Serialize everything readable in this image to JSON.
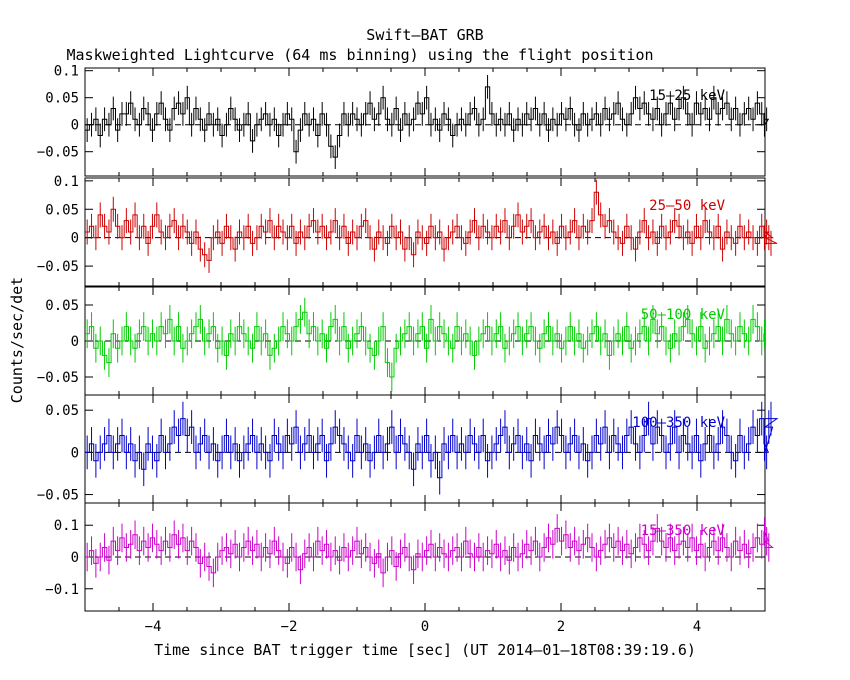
{
  "header": {
    "title": "Swift–BAT GRB",
    "subtitle": "Maskweighted Lightcurve (64 ms binning) using the flight position"
  },
  "axes": {
    "xlabel": "Time since BAT trigger time [sec] (UT 2014‒01‒18T08:39:19.6)",
    "ylabel": "Counts/sec/det",
    "x_ticks": [
      "−4",
      "−2",
      "0",
      "2",
      "4"
    ]
  },
  "chart_data": {
    "type": "line",
    "xlim": [
      -5.0,
      5.0
    ],
    "bin_width_sec": 0.064,
    "x_tick_values": [
      -4,
      -2,
      0,
      2,
      4
    ],
    "x_tick_labels": [
      "−4",
      "−2",
      "0",
      "2",
      "4"
    ],
    "panels": [
      {
        "name": "15–25 keV",
        "label": "15–25 keV",
        "color": "#000000",
        "ylim": [
          -0.095,
          0.105
        ],
        "yticks": [
          0.1,
          0.05,
          0,
          -0.05
        ],
        "ytick_labels": [
          "0.1",
          "0.05",
          "0",
          "−0.05"
        ],
        "error": 0.022,
        "values": [
          -0.01,
          0.0,
          0.01,
          -0.02,
          0.01,
          0.0,
          0.03,
          -0.01,
          0.02,
          0.02,
          0.04,
          0.01,
          0.0,
          0.03,
          0.02,
          -0.01,
          0.02,
          0.04,
          0.01,
          -0.01,
          0.03,
          0.04,
          0.02,
          0.05,
          0.0,
          0.03,
          0.01,
          -0.01,
          0.02,
          0.0,
          0.01,
          -0.02,
          0.0,
          0.03,
          0.01,
          -0.01,
          0.0,
          0.02,
          -0.03,
          0.0,
          0.01,
          0.02,
          0.0,
          0.01,
          -0.02,
          0.0,
          0.02,
          0.01,
          -0.05,
          -0.01,
          0.02,
          0.0,
          0.01,
          -0.02,
          0.02,
          0.0,
          -0.04,
          -0.06,
          -0.02,
          0.02,
          0.0,
          0.02,
          0.01,
          0.0,
          0.02,
          0.04,
          0.01,
          0.02,
          0.05,
          0.01,
          0.0,
          0.03,
          -0.01,
          0.02,
          0.0,
          0.01,
          0.04,
          0.02,
          0.05,
          0.0,
          0.01,
          -0.01,
          0.02,
          0.01,
          -0.02,
          0.0,
          0.01,
          0.0,
          0.02,
          0.03,
          0.0,
          0.01,
          0.07,
          0.02,
          0.0,
          0.01,
          0.0,
          0.02,
          -0.01,
          0.01,
          0.0,
          0.02,
          0.01,
          0.03,
          0.0,
          0.02,
          -0.01,
          0.01,
          0.0,
          0.02,
          0.01,
          0.03,
          0.0,
          -0.01,
          0.02,
          0.0,
          0.01,
          0.02,
          0.0,
          0.03,
          0.01,
          0.02,
          0.04,
          0.01,
          0.0,
          0.02,
          0.05,
          0.03,
          0.04,
          0.02,
          0.01,
          0.03,
          0.0,
          0.02,
          0.04,
          0.01,
          0.03,
          0.05,
          0.02,
          0.0,
          0.04,
          0.02,
          0.03,
          0.01,
          0.05,
          0.02,
          0.03,
          0.04,
          0.01,
          0.03,
          0.0,
          0.02,
          0.03,
          0.01,
          0.04,
          0.02,
          0.0,
          0.01
        ]
      },
      {
        "name": "25–50 keV",
        "label": "25–50 keV",
        "color": "#cc0000",
        "ylim": [
          -0.085,
          0.105
        ],
        "yticks": [
          0.1,
          0.05,
          0,
          -0.05
        ],
        "ytick_labels": [
          "0.1",
          "0.05",
          "0",
          "−0.05"
        ],
        "error": 0.022,
        "values": [
          0.01,
          0.02,
          0.0,
          0.04,
          0.02,
          0.01,
          0.05,
          0.02,
          0.0,
          0.03,
          0.01,
          0.04,
          0.0,
          0.02,
          -0.01,
          0.02,
          0.04,
          0.01,
          0.0,
          0.02,
          0.03,
          0.0,
          0.02,
          0.01,
          -0.01,
          0.01,
          -0.02,
          -0.03,
          -0.04,
          0.0,
          0.01,
          -0.01,
          0.02,
          0.0,
          -0.02,
          0.01,
          0.0,
          0.02,
          -0.01,
          0.0,
          0.02,
          0.01,
          0.03,
          0.0,
          0.02,
          0.01,
          0.0,
          0.02,
          -0.01,
          0.01,
          0.0,
          0.02,
          0.03,
          0.01,
          0.02,
          0.0,
          0.01,
          0.03,
          0.0,
          0.02,
          -0.01,
          0.01,
          0.0,
          0.02,
          0.03,
          0.0,
          -0.02,
          0.01,
          0.0,
          -0.01,
          0.02,
          0.0,
          0.01,
          -0.02,
          0.0,
          -0.03,
          0.01,
          0.0,
          -0.01,
          0.02,
          0.0,
          0.01,
          -0.02,
          0.0,
          0.01,
          0.02,
          0.0,
          -0.01,
          0.01,
          0.03,
          0.0,
          0.02,
          0.01,
          0.0,
          0.02,
          0.01,
          0.03,
          0.0,
          0.02,
          0.04,
          0.01,
          0.02,
          0.03,
          0.0,
          0.01,
          0.02,
          0.0,
          0.01,
          -0.01,
          0.02,
          0.0,
          0.01,
          0.03,
          0.0,
          0.02,
          0.01,
          0.03,
          0.08,
          0.04,
          0.02,
          0.03,
          0.01,
          0.0,
          -0.01,
          0.02,
          0.0,
          -0.02,
          0.01,
          0.03,
          0.0,
          0.01,
          -0.01,
          0.02,
          0.0,
          0.01,
          0.03,
          0.02,
          0.0,
          0.01,
          -0.01,
          0.02,
          0.0,
          0.03,
          0.01,
          0.0,
          0.02,
          -0.02,
          0.01,
          0.0,
          -0.01,
          0.02,
          0.0,
          0.01,
          0.0,
          -0.01,
          0.02,
          0.0,
          0.01,
          0.0,
          -0.01
        ]
      },
      {
        "name": "50–100 keV",
        "label": "50–100 keV",
        "color": "#00cc00",
        "ylim": [
          -0.075,
          0.075
        ],
        "yticks": [
          0.05,
          0,
          -0.05
        ],
        "ytick_labels": [
          "0.05",
          "0",
          "−0.05"
        ],
        "error": 0.02,
        "values": [
          0.01,
          0.02,
          -0.01,
          0.0,
          -0.02,
          -0.03,
          0.01,
          -0.01,
          0.0,
          0.02,
          0.0,
          -0.01,
          0.01,
          0.02,
          0.0,
          0.01,
          0.0,
          0.02,
          0.01,
          0.03,
          0.0,
          0.02,
          -0.01,
          0.0,
          0.01,
          0.02,
          0.03,
          0.0,
          0.01,
          0.02,
          -0.01,
          0.0,
          -0.02,
          0.01,
          0.0,
          0.02,
          0.01,
          0.0,
          -0.01,
          0.02,
          0.0,
          0.01,
          -0.02,
          -0.01,
          0.0,
          0.02,
          0.01,
          0.0,
          0.02,
          0.03,
          0.04,
          0.01,
          0.02,
          0.0,
          0.01,
          -0.01,
          0.02,
          0.03,
          0.0,
          0.02,
          -0.01,
          0.0,
          0.01,
          0.02,
          0.0,
          -0.01,
          -0.02,
          0.0,
          0.02,
          -0.03,
          -0.05,
          -0.01,
          0.0,
          0.01,
          0.02,
          0.0,
          0.01,
          0.02,
          -0.01,
          0.03,
          0.0,
          0.02,
          0.01,
          0.0,
          -0.01,
          0.02,
          0.0,
          0.01,
          0.0,
          -0.02,
          0.0,
          0.01,
          0.02,
          0.0,
          0.01,
          0.02,
          -0.01,
          0.0,
          0.01,
          0.02,
          0.0,
          0.01,
          0.02,
          0.0,
          -0.01,
          0.01,
          0.02,
          0.0,
          0.01,
          -0.01,
          0.0,
          0.02,
          0.0,
          0.01,
          -0.01,
          0.0,
          0.01,
          0.02,
          0.0,
          0.01,
          -0.02,
          0.0,
          0.01,
          0.0,
          0.02,
          -0.01,
          0.0,
          0.01,
          0.02,
          0.0,
          0.03,
          0.01,
          0.02,
          0.0,
          -0.01,
          0.01,
          0.0,
          0.02,
          0.03,
          0.01,
          0.0,
          0.02,
          -0.01,
          0.0,
          0.01,
          0.02,
          0.0,
          0.03,
          0.01,
          0.0,
          0.02,
          0.01,
          0.0,
          0.03,
          0.02,
          0.0,
          0.01
        ]
      },
      {
        "name": "100–350 keV",
        "label": "100–350 keV",
        "color": "#0000cc",
        "ylim": [
          -0.06,
          0.068
        ],
        "yticks": [
          0.05,
          0,
          -0.05
        ],
        "ytick_labels": [
          "0.05",
          "0",
          "−0.05"
        ],
        "error": 0.02,
        "values": [
          0.0,
          0.01,
          -0.01,
          0.0,
          0.01,
          0.02,
          0.0,
          0.01,
          0.02,
          0.0,
          0.01,
          -0.01,
          0.0,
          -0.02,
          0.01,
          0.0,
          -0.01,
          0.02,
          0.0,
          0.01,
          0.03,
          0.02,
          0.04,
          0.02,
          0.03,
          0.0,
          0.01,
          0.02,
          0.0,
          0.01,
          -0.01,
          0.0,
          0.02,
          0.0,
          0.01,
          -0.01,
          0.0,
          0.01,
          0.02,
          0.0,
          0.01,
          0.0,
          -0.01,
          0.02,
          0.01,
          0.0,
          0.02,
          0.01,
          0.03,
          0.0,
          0.01,
          0.02,
          0.0,
          0.01,
          0.02,
          -0.01,
          0.01,
          0.03,
          0.02,
          0.01,
          0.0,
          -0.01,
          0.02,
          0.0,
          0.01,
          -0.01,
          0.0,
          0.02,
          0.0,
          0.01,
          0.03,
          0.0,
          0.02,
          0.01,
          0.0,
          -0.02,
          0.01,
          0.0,
          0.02,
          -0.01,
          0.0,
          -0.03,
          0.01,
          0.0,
          0.02,
          0.0,
          0.01,
          0.0,
          0.02,
          0.01,
          0.0,
          0.02,
          -0.01,
          0.0,
          0.01,
          0.02,
          0.03,
          0.0,
          0.01,
          0.02,
          0.0,
          0.01,
          -0.01,
          0.02,
          0.01,
          0.0,
          0.02,
          0.01,
          0.03,
          0.02,
          0.0,
          0.01,
          0.02,
          0.0,
          0.01,
          -0.01,
          0.0,
          0.02,
          0.01,
          0.03,
          0.0,
          0.02,
          0.01,
          0.0,
          0.02,
          0.03,
          0.01,
          0.0,
          0.02,
          0.04,
          0.01,
          0.03,
          0.02,
          0.0,
          0.01,
          0.03,
          0.0,
          0.02,
          0.01,
          0.0,
          0.02,
          -0.01,
          0.01,
          0.02,
          0.0,
          0.01,
          0.03,
          0.02,
          0.0,
          -0.01,
          0.02,
          0.0,
          0.01,
          0.03,
          0.02,
          0.04,
          0.01,
          0.0,
          0.03,
          0.04
        ]
      },
      {
        "name": "15–350 keV",
        "label": "15–350 keV",
        "color": "#cc00cc",
        "ylim": [
          -0.17,
          0.17
        ],
        "yticks": [
          0.1,
          0,
          -0.1
        ],
        "ytick_labels": [
          "0.1",
          "0",
          "−0.1"
        ],
        "error": 0.045,
        "values": [
          0.0,
          0.02,
          -0.02,
          0.0,
          0.03,
          -0.01,
          0.05,
          0.02,
          0.06,
          0.03,
          0.04,
          0.07,
          0.02,
          0.05,
          0.03,
          0.06,
          0.04,
          0.02,
          0.05,
          0.03,
          0.07,
          0.04,
          0.06,
          0.02,
          0.05,
          0.03,
          -0.02,
          0.0,
          -0.03,
          -0.05,
          0.0,
          0.02,
          0.03,
          0.01,
          0.04,
          0.0,
          0.03,
          0.05,
          0.02,
          0.04,
          0.0,
          0.03,
          0.01,
          0.05,
          0.02,
          0.0,
          -0.02,
          0.03,
          0.0,
          -0.04,
          0.01,
          0.03,
          0.0,
          0.05,
          0.02,
          0.04,
          0.0,
          0.02,
          -0.01,
          0.03,
          0.0,
          0.02,
          0.05,
          0.01,
          0.03,
          0.0,
          -0.02,
          0.01,
          -0.05,
          0.0,
          0.02,
          -0.03,
          0.01,
          0.03,
          0.0,
          -0.04,
          0.01,
          0.0,
          0.02,
          0.04,
          0.0,
          0.03,
          0.01,
          0.0,
          0.02,
          0.03,
          0.0,
          0.05,
          0.01,
          0.0,
          0.03,
          0.0,
          0.02,
          0.01,
          0.04,
          0.0,
          0.02,
          -0.01,
          0.03,
          0.0,
          0.01,
          0.04,
          0.02,
          0.05,
          0.0,
          0.03,
          0.06,
          0.04,
          0.09,
          0.05,
          0.07,
          0.03,
          0.05,
          0.02,
          0.04,
          0.06,
          0.03,
          0.0,
          0.02,
          0.04,
          0.06,
          0.03,
          0.05,
          0.02,
          0.04,
          0.01,
          0.03,
          0.06,
          0.04,
          0.02,
          0.05,
          0.09,
          0.05,
          0.03,
          0.06,
          0.02,
          0.04,
          0.05,
          0.03,
          0.06,
          0.02,
          0.04,
          0.0,
          0.03,
          0.05,
          0.02,
          0.06,
          0.03,
          0.0,
          0.05,
          0.02,
          0.04,
          0.01,
          0.03,
          0.06,
          0.04,
          0.08,
          0.05,
          0.03
        ]
      }
    ]
  }
}
